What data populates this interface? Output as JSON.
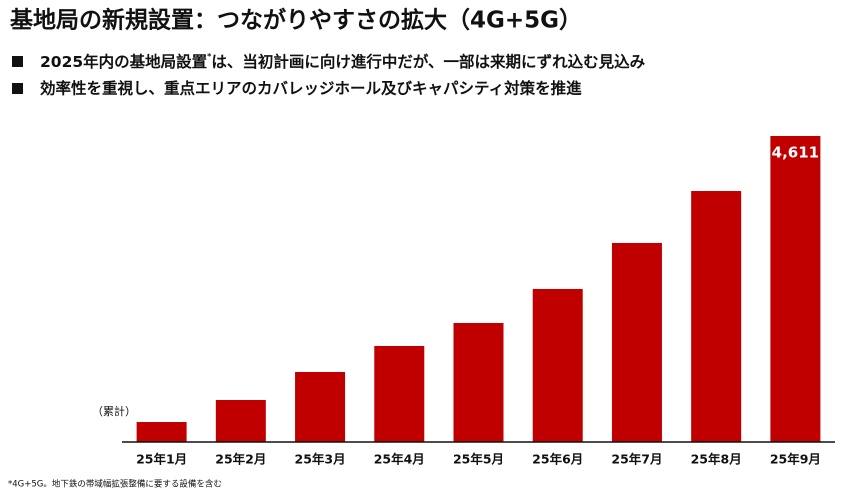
{
  "header": {
    "title": "基地局の新規設置：つながりやすさの拡大（4G+5G）",
    "bullets": [
      [
        "2025年内の基地局設置",
        "*",
        "は、当初計画に向け進行中だが、一部は来期にずれ込む見込み"
      ],
      [
        "効率性を重視し、重点エリアのカバレッジホール及びキャパシティ対策を推進"
      ]
    ]
  },
  "chart_data": {
    "type": "bar",
    "unit_label": "（累計）",
    "categories": [
      "25年1月",
      "25年2月",
      "25年3月",
      "25年4月",
      "25年5月",
      "25年6月",
      "25年7月",
      "25年8月",
      "25年9月"
    ],
    "values": [
      301,
      633,
      1055,
      1447,
      1793,
      2306,
      2999,
      3782,
      4611
    ],
    "value_labels": [
      null,
      null,
      null,
      null,
      null,
      null,
      null,
      null,
      "4,611"
    ],
    "color": "#c00000"
  },
  "footnote": "*4G+5G。地下鉄の帯域幅拡張整備に要する設備を含む"
}
